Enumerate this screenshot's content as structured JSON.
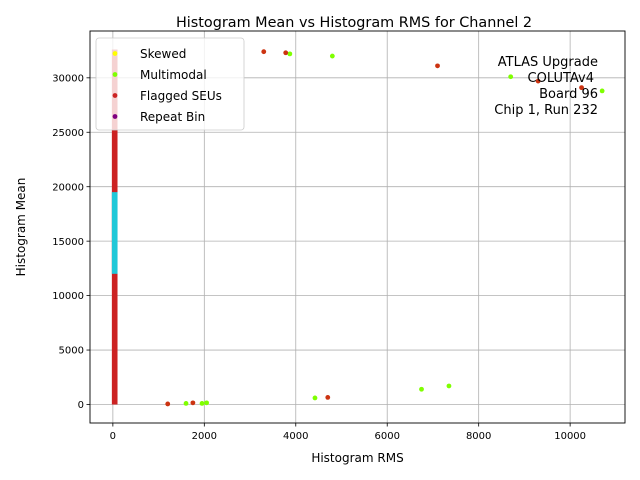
{
  "chart_data": {
    "type": "scatter",
    "title": "Histogram Mean vs Histogram RMS for Channel 2",
    "xlabel": "Histogram RMS",
    "ylabel": "Histogram Mean",
    "xlim": [
      -500,
      11200
    ],
    "ylim": [
      -1700,
      34300
    ],
    "xticks": [
      0,
      2000,
      4000,
      6000,
      8000,
      10000
    ],
    "yticks": [
      0,
      5000,
      10000,
      15000,
      20000,
      25000,
      30000
    ],
    "grid": true,
    "legend_position": "top-left",
    "legend": [
      {
        "label": "Skewed",
        "color": "#ffff00"
      },
      {
        "label": "Multimodal",
        "color": "#7fff00"
      },
      {
        "label": "Flagged SEUs",
        "color": "#cc2222"
      },
      {
        "label": "Repeat Bin",
        "color": "#800080"
      }
    ],
    "annotation": [
      "ATLAS Upgrade",
      "COLUTAv4",
      "Board 96",
      "Chip 1, Run 232"
    ],
    "series": [
      {
        "name": "Multimodal",
        "color": "#7fff00",
        "points": [
          [
            3870,
            32200
          ],
          [
            4800,
            32000
          ],
          [
            8700,
            30100
          ],
          [
            10700,
            28800
          ],
          [
            7350,
            1700
          ],
          [
            6750,
            1400
          ],
          [
            4420,
            600
          ],
          [
            2050,
            150
          ],
          [
            1600,
            100
          ],
          [
            1950,
            100
          ]
        ]
      },
      {
        "name": "Flagged SEUs",
        "color": "#cc3311",
        "points": [
          [
            3300,
            32400
          ],
          [
            3780,
            32300
          ],
          [
            7100,
            31100
          ],
          [
            9300,
            29700
          ],
          [
            10250,
            29100
          ],
          [
            4700,
            650
          ],
          [
            1750,
            150
          ],
          [
            1200,
            50
          ]
        ]
      }
    ],
    "vertical_band": {
      "x_range": [
        0,
        80
      ],
      "y_range": [
        0,
        32600
      ],
      "segments": [
        {
          "color": "#cc2222",
          "y_range": [
            0,
            32600
          ]
        },
        {
          "color": "#20c8d8",
          "y_range": [
            12000,
            19500
          ]
        }
      ]
    }
  }
}
